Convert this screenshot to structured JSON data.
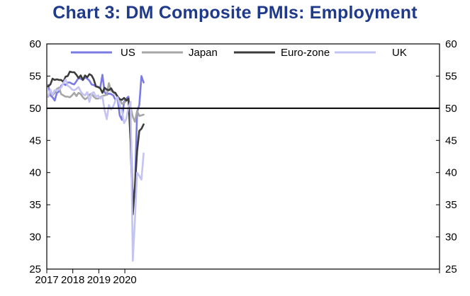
{
  "title": "Chart 3: DM Composite PMIs: Employment",
  "chart_data": {
    "type": "line",
    "title": "Chart 3: DM Composite PMIs: Employment",
    "xlabel": "",
    "ylabel": "",
    "x_ticks": [
      "2017",
      "2018",
      "2019",
      "2020"
    ],
    "y_ticks": [
      25,
      30,
      35,
      40,
      45,
      50,
      55,
      60
    ],
    "ylim": [
      25,
      60
    ],
    "x_range": [
      "2017-01",
      "2020-09"
    ],
    "reference_line": 50,
    "legend_position": "top",
    "x": [
      "2017-01",
      "2017-02",
      "2017-03",
      "2017-04",
      "2017-05",
      "2017-06",
      "2017-07",
      "2017-08",
      "2017-09",
      "2017-10",
      "2017-11",
      "2017-12",
      "2018-01",
      "2018-02",
      "2018-03",
      "2018-04",
      "2018-05",
      "2018-06",
      "2018-07",
      "2018-08",
      "2018-09",
      "2018-10",
      "2018-11",
      "2018-12",
      "2019-01",
      "2019-02",
      "2019-03",
      "2019-04",
      "2019-05",
      "2019-06",
      "2019-07",
      "2019-08",
      "2019-09",
      "2019-10",
      "2019-11",
      "2019-12",
      "2020-01",
      "2020-02",
      "2020-03",
      "2020-04",
      "2020-05",
      "2020-06",
      "2020-07",
      "2020-08",
      "2020-09"
    ],
    "series": [
      {
        "name": "US",
        "color": "#7b7be6",
        "values": [
          53.6,
          52.0,
          51.7,
          51.2,
          52.4,
          52.6,
          53.5,
          53.8,
          53.6,
          54.0,
          54.0,
          53.8,
          53.7,
          54.2,
          54.7,
          54.6,
          54.4,
          54.8,
          54.6,
          54.3,
          53.7,
          53.6,
          53.4,
          53.3,
          53.2,
          55.2,
          52.5,
          52.1,
          52.3,
          52.2,
          52.0,
          51.3,
          51.5,
          48.9,
          48.2,
          51.0,
          51.5,
          51.8,
          47.5,
          36.0,
          37.5,
          49.4,
          50.5,
          55.0,
          54.0
        ]
      },
      {
        "name": "Japan",
        "color": "#a6a6a6",
        "values": [
          51.8,
          52.5,
          52.0,
          52.4,
          53.0,
          53.2,
          52.2,
          52.0,
          51.8,
          51.8,
          51.7,
          52.0,
          52.4,
          51.9,
          52.4,
          52.2,
          51.7,
          51.4,
          51.6,
          52.1,
          52.3,
          51.8,
          51.5,
          51.5,
          51.7,
          51.9,
          52.0,
          52.1,
          53.9,
          52.7,
          52.5,
          52.2,
          51.8,
          51.4,
          50.7,
          50.8,
          51.2,
          51.3,
          50.2,
          48.7,
          47.9,
          49.6,
          48.8,
          48.9,
          49.0
        ]
      },
      {
        "name": "Euro-zone",
        "color": "#3c3c3c",
        "values": [
          53.4,
          53.7,
          54.6,
          54.4,
          54.5,
          54.4,
          54.4,
          54.1,
          54.9,
          55.0,
          55.7,
          55.6,
          55.6,
          55.2,
          54.7,
          55.1,
          54.4,
          55.1,
          54.8,
          55.3,
          55.1,
          54.5,
          53.4,
          53.3,
          53.1,
          52.4,
          53.2,
          52.9,
          52.8,
          53.1,
          52.5,
          52.4,
          51.8,
          51.4,
          51.3,
          51.6,
          51.2,
          51.5,
          44.8,
          33.5,
          37.8,
          43.3,
          46.5,
          46.8,
          47.5
        ]
      },
      {
        "name": "UK",
        "color": "#c3c3f5",
        "values": [
          51.9,
          52.9,
          52.1,
          52.8,
          52.8,
          52.9,
          53.2,
          53.9,
          54.5,
          53.5,
          53.3,
          52.9,
          52.8,
          53.0,
          53.3,
          52.6,
          52.2,
          52.0,
          52.5,
          51.0,
          52.3,
          52.5,
          51.8,
          52.0,
          51.5,
          51.8,
          49.7,
          48.3,
          50.5,
          49.8,
          50.3,
          51.2,
          51.7,
          50.5,
          49.6,
          47.7,
          48.3,
          50.2,
          51.0,
          26.3,
          32.6,
          40.0,
          39.5,
          38.9,
          43.0
        ]
      }
    ]
  }
}
